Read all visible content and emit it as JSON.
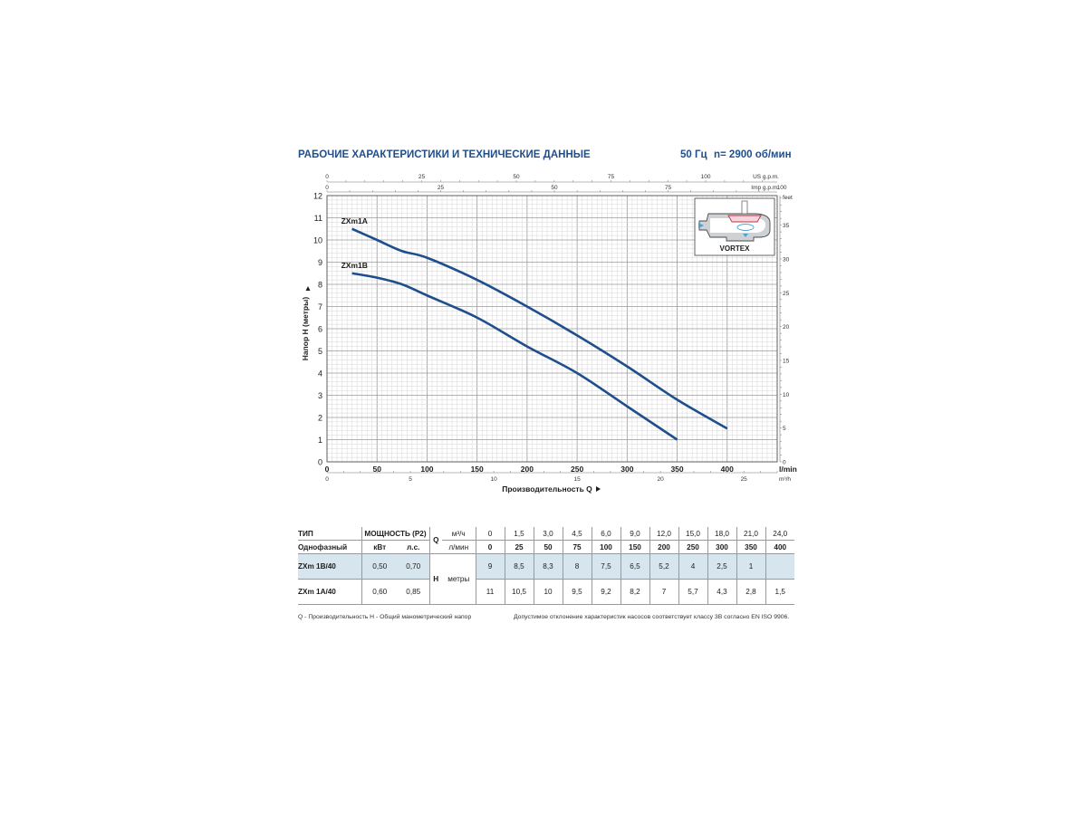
{
  "header": {
    "title": "РАБОЧИЕ ХАРАКТЕРИСТИКИ И ТЕХНИЧЕСКИЕ ДАННЫЕ",
    "freq": "50 Гц",
    "speed": "n= 2900 об/мин"
  },
  "chart_data": {
    "type": "line",
    "xlabel": "Производительность Q",
    "ylabel": "Напор H (метры)",
    "x_unit": "l/min",
    "xlim": [
      0,
      450
    ],
    "ylim": [
      0,
      12
    ],
    "x_ticks": [
      50,
      100,
      150,
      200,
      250,
      300,
      350,
      400
    ],
    "y_ticks": [
      0,
      1,
      2,
      3,
      4,
      5,
      6,
      7,
      8,
      9,
      10,
      11,
      12
    ],
    "grid": true,
    "axis_us_gpm": {
      "label": "US g.p.m.",
      "ticks": [
        0,
        25,
        50,
        75,
        100
      ]
    },
    "axis_imp_gpm": {
      "label": "Imp g.p.m.",
      "ticks": [
        0,
        25,
        50,
        75,
        100
      ]
    },
    "axis_m3h": {
      "label": "m³/h",
      "ticks": [
        0,
        5,
        10,
        15,
        20,
        25
      ]
    },
    "axis_feet": {
      "label": "feet",
      "ticks": [
        0,
        5,
        10,
        15,
        20,
        25,
        30,
        35
      ]
    },
    "series": [
      {
        "name": "ZXm1A",
        "color": "#1f4e8c",
        "x": [
          25,
          50,
          75,
          100,
          150,
          200,
          250,
          300,
          350,
          400
        ],
        "y": [
          10.5,
          10,
          9.5,
          9.2,
          8.2,
          7,
          5.7,
          4.3,
          2.8,
          1.5
        ]
      },
      {
        "name": "ZXm1B",
        "color": "#1f4e8c",
        "x": [
          25,
          50,
          75,
          100,
          150,
          200,
          250,
          300,
          350
        ],
        "y": [
          8.5,
          8.3,
          8,
          7.5,
          6.5,
          5.2,
          4,
          2.5,
          1
        ]
      }
    ],
    "inset_label": "VORTEX"
  },
  "table": {
    "type_label": "ТИП",
    "power_label": "МОЩНОСТЬ (P2)",
    "phase_label": "Однофазный",
    "kw_label": "кВт",
    "hp_label": "л.с.",
    "q_label": "Q",
    "q_unit_m3h": "м³/ч",
    "q_unit_lmin": "л/мин",
    "h_label": "H",
    "h_unit": "метры",
    "q_m3h": [
      "0",
      "1,5",
      "3,0",
      "4,5",
      "6,0",
      "9,0",
      "12,0",
      "15,0",
      "18,0",
      "21,0",
      "24,0"
    ],
    "q_lmin": [
      "0",
      "25",
      "50",
      "75",
      "100",
      "150",
      "200",
      "250",
      "300",
      "350",
      "400"
    ],
    "rows": [
      {
        "model": "ZXm 1B/40",
        "kw": "0,50",
        "hp": "0,70",
        "h": [
          "9",
          "8,5",
          "8,3",
          "8",
          "7,5",
          "6,5",
          "5,2",
          "4",
          "2,5",
          "1",
          ""
        ]
      },
      {
        "model": "ZXm 1A/40",
        "kw": "0,60",
        "hp": "0,85",
        "h": [
          "11",
          "10,5",
          "10",
          "9,5",
          "9,2",
          "8,2",
          "7",
          "5,7",
          "4,3",
          "2,8",
          "1,5"
        ]
      }
    ]
  },
  "footer": {
    "left": "Q - Производительность   H - Общий манометрический напор",
    "right": "Допустимое отклонение характеристик насосов соответствует классу 3В согласно EN ISO 9906."
  }
}
